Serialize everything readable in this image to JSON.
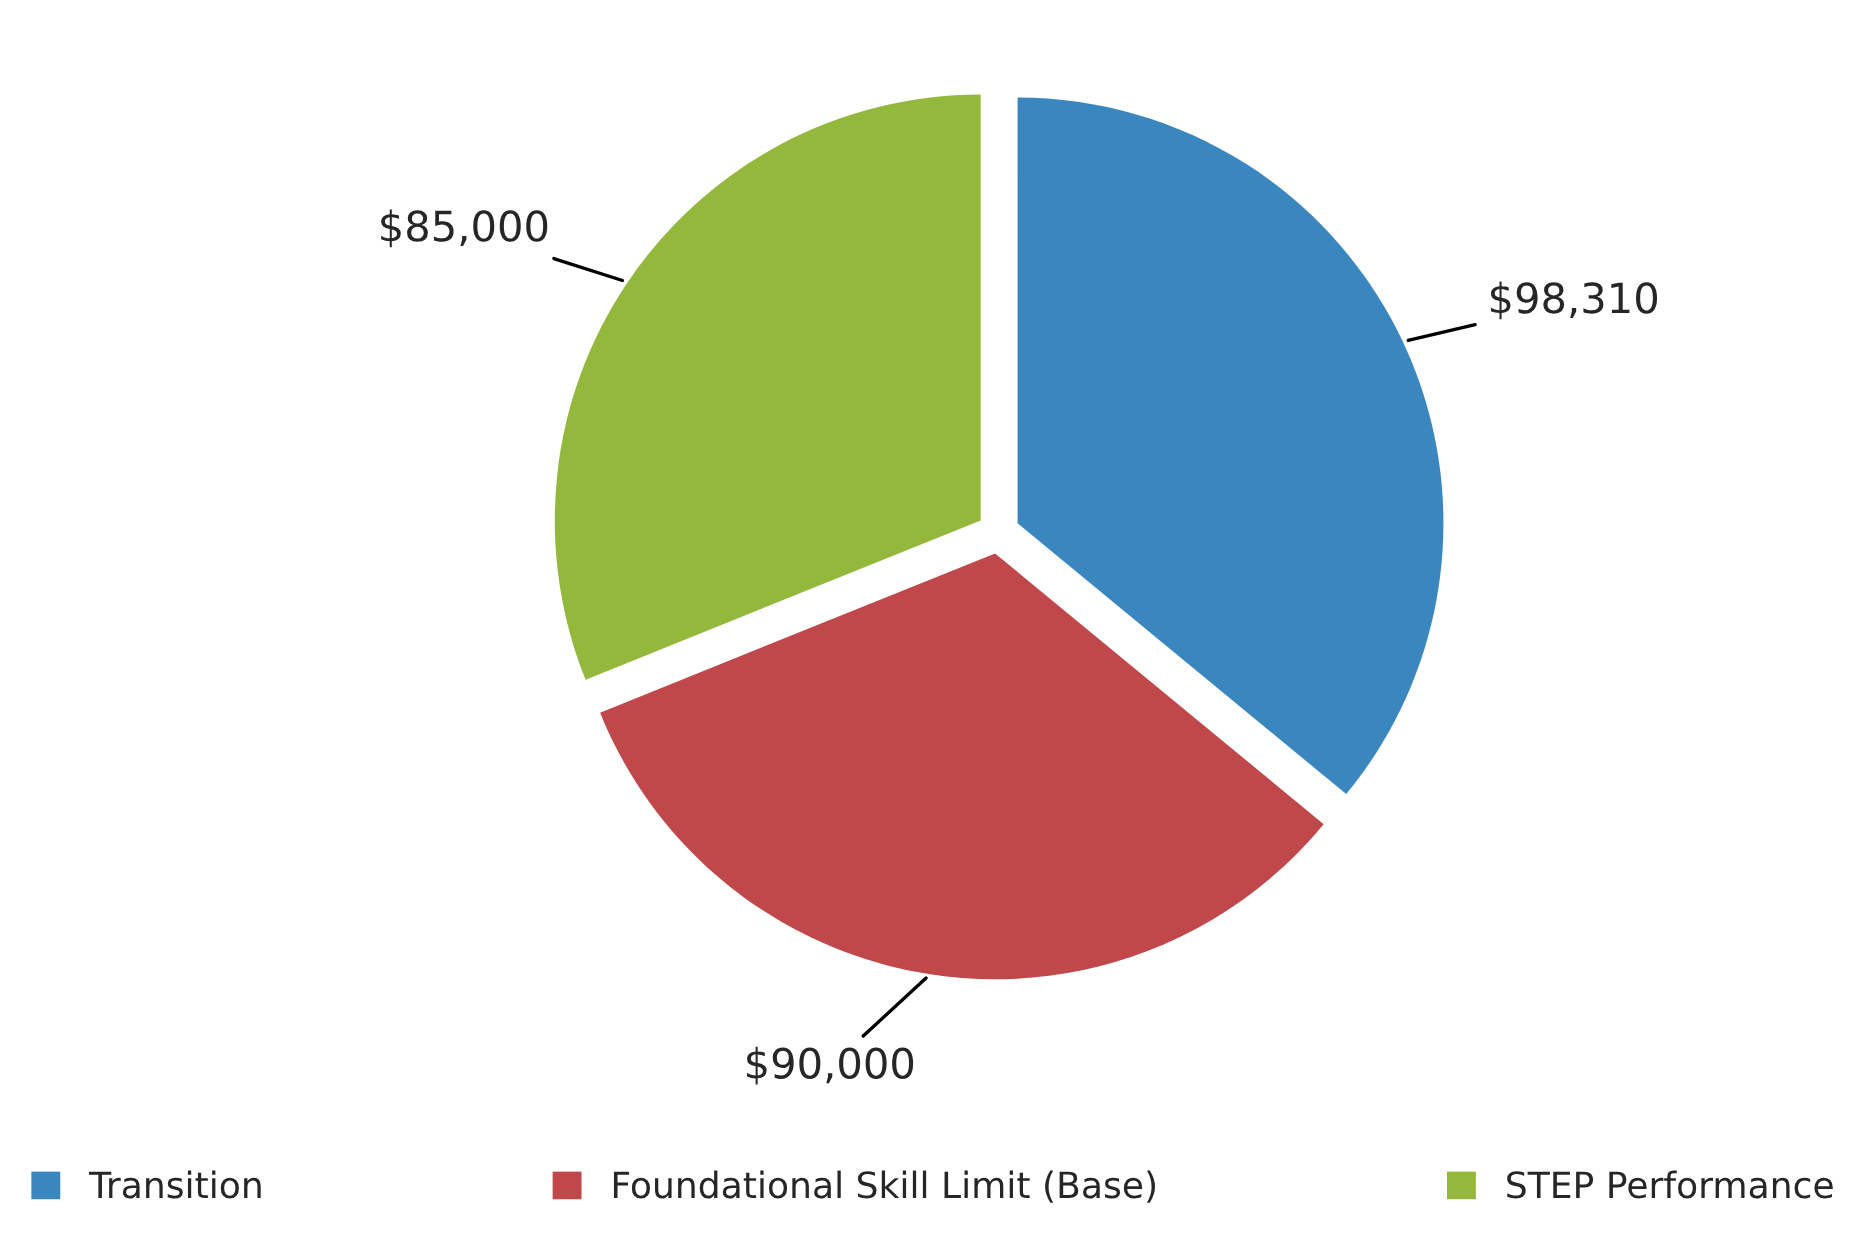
{
  "chart_data": {
    "type": "pie",
    "categories": [
      "Transition",
      "Foundational Skill Limit (Base)",
      "STEP Performance"
    ],
    "values": [
      98310,
      90000,
      85000
    ],
    "value_labels": [
      "$98,310",
      "$90,000",
      "$85,000"
    ],
    "colors": [
      "#3a87c0",
      "#c0474a",
      "#93b83c"
    ],
    "legend": "bottom"
  }
}
